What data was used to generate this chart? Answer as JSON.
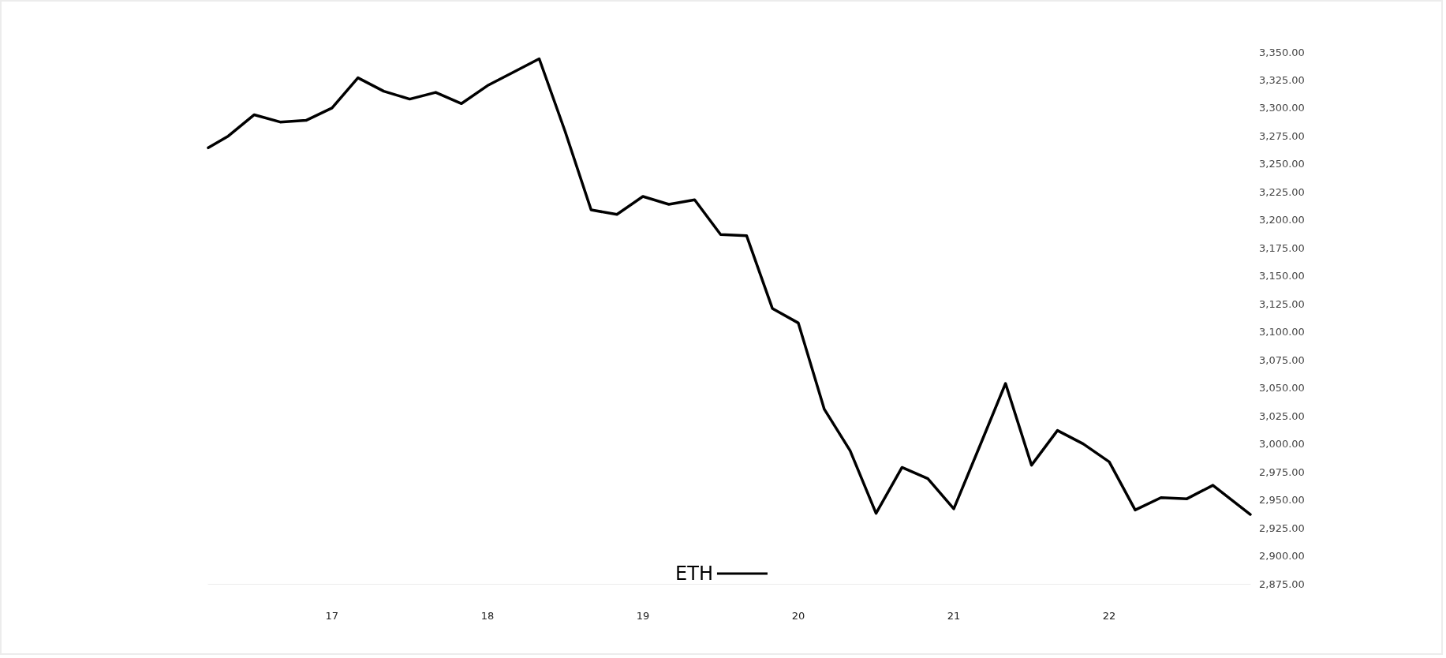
{
  "chart_data": {
    "type": "line",
    "legend": "bottom",
    "grid": false,
    "marker": "none",
    "line_style": "solid",
    "x": [
      16.204,
      16.333,
      16.5,
      16.667,
      16.833,
      17,
      17.167,
      17.333,
      17.5,
      17.667,
      17.833,
      18,
      18.167,
      18.333,
      18.5,
      18.667,
      18.833,
      19,
      19.167,
      19.333,
      19.5,
      19.667,
      19.833,
      20,
      20.167,
      20.333,
      20.5,
      20.667,
      20.833,
      21,
      21.167,
      21.333,
      21.5,
      21.667,
      21.833,
      22,
      22.167,
      22.333,
      22.5,
      22.667,
      22.833,
      22.908
    ],
    "series": [
      {
        "name": "ETH",
        "color": "#000000",
        "values": [
          3264.5,
          3275,
          3294,
          3287.5,
          3289,
          3300,
          3327,
          3315,
          3308,
          3314,
          3304,
          3320,
          3332,
          3344,
          3279,
          3209,
          3205,
          3221,
          3214,
          3218,
          3187,
          3186,
          3121,
          3108,
          3031,
          2994,
          2938,
          2979,
          2969,
          2942,
          2998,
          3054,
          2981,
          3012,
          3000,
          2984,
          2941,
          2952,
          2951,
          2963,
          2945,
          2937
        ]
      }
    ],
    "xlim": [
      16.204,
      22.908
    ],
    "xticks": [
      17,
      18,
      19,
      20,
      21,
      22
    ],
    "ylim": [
      2875,
      3350
    ],
    "yticks": [
      {
        "value": 2875,
        "label": "2,875.00"
      },
      {
        "value": 2900,
        "label": "2,900.00"
      },
      {
        "value": 2925,
        "label": "2,925.00"
      },
      {
        "value": 2950,
        "label": "2,950.00"
      },
      {
        "value": 2975,
        "label": "2,975.00"
      },
      {
        "value": 3000,
        "label": "3,000.00"
      },
      {
        "value": 3025,
        "label": "3,025.00"
      },
      {
        "value": 3050,
        "label": "3,050.00"
      },
      {
        "value": 3075,
        "label": "3,075.00"
      },
      {
        "value": 3100,
        "label": "3,100.00"
      },
      {
        "value": 3125,
        "label": "3,125.00"
      },
      {
        "value": 3150,
        "label": "3,150.00"
      },
      {
        "value": 3175,
        "label": "3,175.00"
      },
      {
        "value": 3200,
        "label": "3,200.00"
      },
      {
        "value": 3225,
        "label": "3,225.00"
      },
      {
        "value": 3250,
        "label": "3,250.00"
      },
      {
        "value": 3275,
        "label": "3,275.00"
      },
      {
        "value": 3300,
        "label": "3,300.00"
      },
      {
        "value": 3325,
        "label": "3,325.00"
      },
      {
        "value": 3350,
        "label": "3,350.00"
      }
    ]
  }
}
